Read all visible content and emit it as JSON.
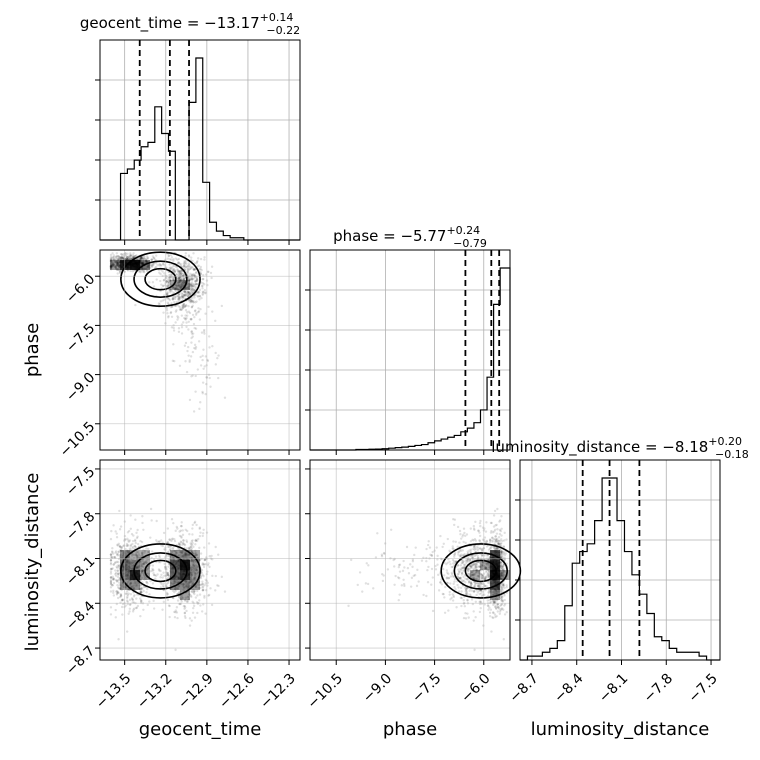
{
  "chart_data": {
    "type": "corner",
    "parameters": [
      "geocent_time",
      "phase",
      "luminosity_distance"
    ],
    "axis_labels": {
      "geocent_time": "geocent_time",
      "phase": "phase",
      "luminosity_distance": "luminosity_distance"
    },
    "ranges": {
      "geocent_time": [
        -13.68,
        -12.22
      ],
      "phase": [
        -11.3,
        -5.2
      ],
      "luminosity_distance": [
        -8.78,
        -7.44
      ]
    },
    "ticks": {
      "geocent_time": [
        -13.5,
        -13.2,
        -12.9,
        -12.6,
        -12.3
      ],
      "phase": [
        -10.5,
        -9.0,
        -7.5,
        -6.0
      ],
      "luminosity_distance": [
        -8.7,
        -8.4,
        -8.1,
        -7.8,
        -7.5
      ]
    },
    "tick_labels": {
      "geocent_time": [
        "−13.5",
        "−13.2",
        "−12.9",
        "−12.6",
        "−12.3"
      ],
      "phase": [
        "−10.5",
        "−9.0",
        "−7.5",
        "−6.0"
      ],
      "luminosity_distance": [
        "−8.7",
        "−8.4",
        "−8.1",
        "−7.8",
        "−7.5"
      ]
    },
    "titles": {
      "geocent_time": {
        "main": "geocent_time = −13.17",
        "plus": "+0.14",
        "minus": "−0.22"
      },
      "phase": {
        "main": "phase = −5.77",
        "plus": "+0.24",
        "minus": "−0.79"
      },
      "luminosity_distance": {
        "main": "luminosity_distance = −8.18",
        "plus": "+0.20",
        "minus": "−0.18"
      }
    },
    "quantiles": {
      "geocent_time": [
        -13.39,
        -13.17,
        -13.03
      ],
      "phase": [
        -6.56,
        -5.77,
        -5.53
      ],
      "luminosity_distance": [
        -8.36,
        -8.18,
        -7.98
      ]
    },
    "histograms": {
      "geocent_time": {
        "edges": [
          -13.68,
          -13.63,
          -13.58,
          -13.53,
          -13.48,
          -13.43,
          -13.38,
          -13.33,
          -13.28,
          -13.23,
          -13.18,
          -13.13,
          -13.08,
          -13.03,
          -12.98,
          -12.93,
          -12.88,
          -12.83,
          -12.78,
          -12.73,
          -12.68,
          -12.63,
          -12.58,
          -12.53,
          -12.48,
          -12.43,
          -12.38,
          -12.33,
          -12.28,
          -12.22
        ],
        "counts": [
          0,
          0,
          0,
          30,
          32,
          36,
          42,
          44,
          60,
          48,
          40,
          0,
          0,
          62,
          82,
          26,
          8,
          4,
          2,
          1,
          1,
          0,
          0,
          0,
          0,
          0,
          0,
          0,
          0
        ]
      },
      "phase": {
        "edges": [
          -11.3,
          -11.1,
          -10.9,
          -10.7,
          -10.5,
          -10.3,
          -10.1,
          -9.9,
          -9.7,
          -9.5,
          -9.3,
          -9.1,
          -8.9,
          -8.7,
          -8.5,
          -8.3,
          -8.1,
          -7.9,
          -7.7,
          -7.5,
          -7.3,
          -7.1,
          -6.9,
          -6.7,
          -6.5,
          -6.3,
          -6.1,
          -5.9,
          -5.7,
          -5.5,
          -5.2
        ],
        "counts": [
          0,
          0,
          0,
          0,
          0,
          0,
          0,
          0.3,
          0.3,
          0.4,
          0.5,
          0.7,
          1,
          1.3,
          1.6,
          2,
          2.5,
          3,
          4,
          5,
          6,
          7,
          8,
          10,
          12,
          15,
          22,
          40,
          80,
          100
        ]
      },
      "luminosity_distance": {
        "edges": [
          -8.78,
          -8.73,
          -8.68,
          -8.63,
          -8.58,
          -8.53,
          -8.48,
          -8.43,
          -8.38,
          -8.33,
          -8.28,
          -8.23,
          -8.18,
          -8.13,
          -8.08,
          -8.03,
          -7.98,
          -7.93,
          -7.88,
          -7.83,
          -7.78,
          -7.73,
          -7.68,
          -7.63,
          -7.58,
          -7.53,
          -7.44
        ],
        "counts": [
          0,
          1,
          1,
          2,
          3,
          5,
          14,
          25,
          28,
          30,
          36,
          47,
          47,
          36,
          28,
          22,
          17,
          12,
          6,
          5,
          3,
          2,
          2,
          2,
          1,
          0
        ]
      }
    },
    "grid": true,
    "colors": {
      "ink": "#000000",
      "density": "#000000",
      "grid": "#b0b0b0"
    }
  }
}
